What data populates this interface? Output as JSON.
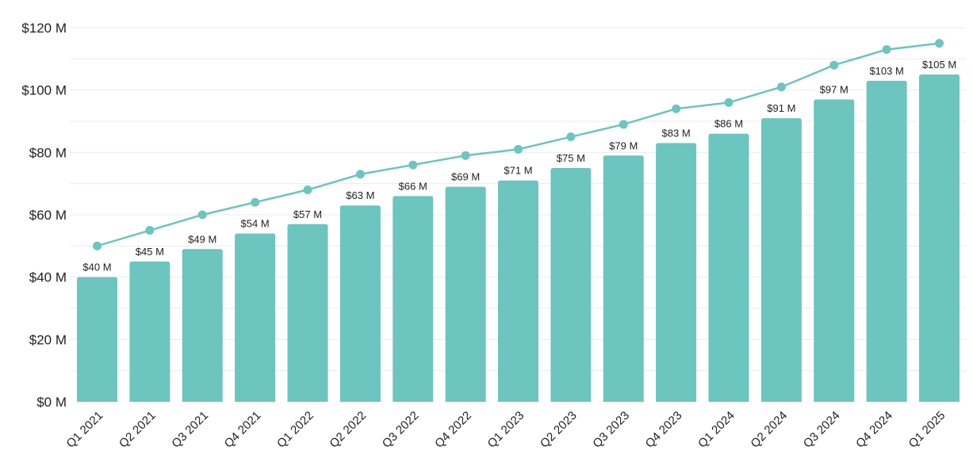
{
  "chart_data": {
    "type": "bar",
    "title": "",
    "xlabel": "",
    "ylabel": "",
    "ylim": [
      0,
      120
    ],
    "yticks": [
      "$0 M",
      "$20 M",
      "$40 M",
      "$60 M",
      "$80 M",
      "$100 M",
      "$120 M"
    ],
    "ytick_values": [
      0,
      20,
      40,
      60,
      80,
      100,
      120
    ],
    "grid": true,
    "categories": [
      "Q1 2021",
      "Q2 2021",
      "Q3 2021",
      "Q4 2021",
      "Q1 2022",
      "Q2 2022",
      "Q3 2022",
      "Q4 2022",
      "Q1 2023",
      "Q2 2023",
      "Q3 2023",
      "Q4 2023",
      "Q1 2024",
      "Q2 2024",
      "Q3 2024",
      "Q4 2024",
      "Q1 2025"
    ],
    "series": [
      {
        "type": "bar",
        "color": "#6cc5bf",
        "values": [
          40,
          45,
          49,
          54,
          57,
          63,
          66,
          69,
          71,
          75,
          79,
          83,
          86,
          91,
          97,
          103,
          105
        ],
        "labels": [
          "$40 M",
          "$45 M",
          "$49 M",
          "$54 M",
          "$57 M",
          "$63 M",
          "$66 M",
          "$69 M",
          "$71 M",
          "$75 M",
          "$79 M",
          "$83 M",
          "$86 M",
          "$91 M",
          "$97 M",
          "$103 M",
          "$105 M"
        ]
      },
      {
        "type": "line",
        "color": "#6cc5bf",
        "values": [
          50,
          55,
          60,
          64,
          68,
          73,
          76,
          79,
          81,
          85,
          89,
          94,
          96,
          101,
          108,
          113,
          115
        ]
      }
    ]
  }
}
